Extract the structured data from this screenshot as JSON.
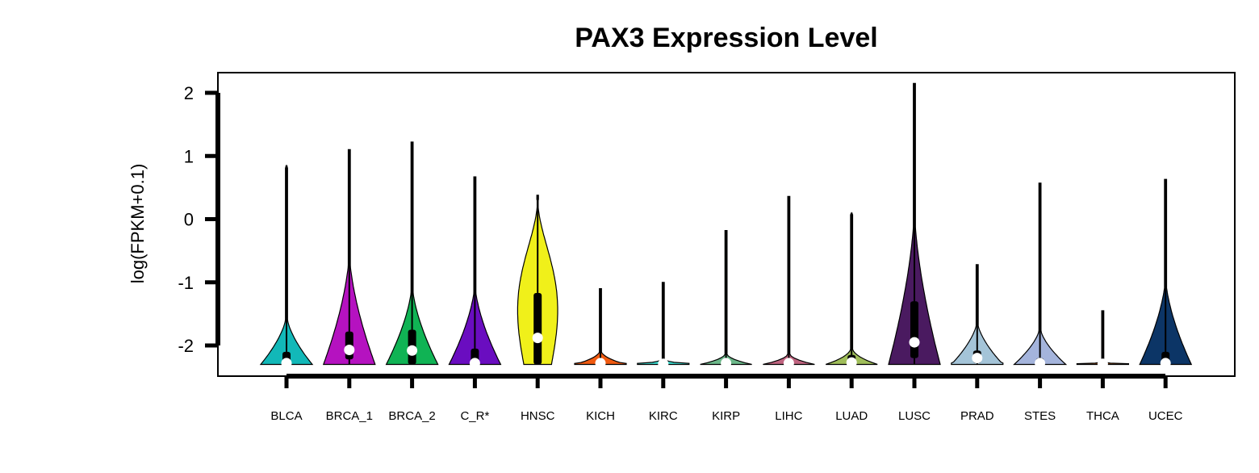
{
  "chart_data": {
    "type": "violin",
    "title": "PAX3 Expression Level",
    "ylabel": "log(FPKM+0.1)",
    "xlabel": "",
    "ylim": [
      -2.3,
      2.2
    ],
    "yticks": [
      2,
      1,
      0,
      -1,
      -2
    ],
    "grid": false,
    "legend": "none",
    "categories": [
      "BLCA",
      "BRCA_1",
      "BRCA_2",
      "C_R*",
      "HNSC",
      "KICH",
      "KIRC",
      "KIRP",
      "LIHC",
      "LUAD",
      "LUSC",
      "PRAD",
      "STES",
      "THCA",
      "UCEC"
    ],
    "series": [
      {
        "category": "BLCA",
        "color": "#12b8b8",
        "max": 0.85,
        "q1": -2.3,
        "median": -2.28,
        "q3": -2.1,
        "peak_y": -2.3,
        "halfwidth": 0.55,
        "profile": "tail_-1.5"
      },
      {
        "category": "BRCA_1",
        "color": "#b512c0",
        "max": 1.1,
        "q1": -2.22,
        "median": -2.07,
        "q3": -1.78,
        "peak_y": -2.2,
        "halfwidth": 0.55,
        "profile": "tail_-0.5"
      },
      {
        "category": "BRCA_2",
        "color": "#10b354",
        "max": 1.22,
        "q1": -2.3,
        "median": -2.08,
        "q3": -1.75,
        "peak_y": -2.2,
        "halfwidth": 0.55,
        "profile": "tail_-1.0"
      },
      {
        "category": "C_R*",
        "color": "#6a0dc0",
        "max": 0.67,
        "q1": -2.3,
        "median": -2.28,
        "q3": -2.05,
        "peak_y": -2.3,
        "halfwidth": 0.55,
        "profile": "tail_-1.0"
      },
      {
        "category": "HNSC",
        "color": "#f0f01a",
        "max": 0.38,
        "q1": -2.3,
        "median": -1.88,
        "q3": -1.17,
        "peak_y": -1.5,
        "halfwidth": 0.55,
        "profile": "tall_0.3"
      },
      {
        "category": "KICH",
        "color": "#f05a10",
        "max": -1.1,
        "q1": -2.3,
        "median": -2.28,
        "q3": -2.28,
        "peak_y": -2.3,
        "halfwidth": 0.55,
        "profile": "flat_-2.05"
      },
      {
        "category": "KIRC",
        "color": "#3cdcd0",
        "max": -1.0,
        "q1": -2.3,
        "median": -2.29,
        "q3": -2.29,
        "peak_y": -2.3,
        "halfwidth": 0.55,
        "profile": "flat_-2.2"
      },
      {
        "category": "KIRP",
        "color": "#6cb88a",
        "max": -0.18,
        "q1": -2.3,
        "median": -2.28,
        "q3": -2.28,
        "peak_y": -2.3,
        "halfwidth": 0.55,
        "profile": "flat_-2.1"
      },
      {
        "category": "LIHC",
        "color": "#c06480",
        "max": 0.36,
        "q1": -2.3,
        "median": -2.28,
        "q3": -2.28,
        "peak_y": -2.3,
        "halfwidth": 0.55,
        "profile": "flat_-2.1"
      },
      {
        "category": "LUAD",
        "color": "#a0be5a",
        "max": 0.1,
        "q1": -2.3,
        "median": -2.27,
        "q3": -2.15,
        "peak_y": -2.3,
        "halfwidth": 0.55,
        "profile": "flat_-2.0"
      },
      {
        "category": "LUSC",
        "color": "#4a1a60",
        "max": 2.15,
        "q1": -2.2,
        "median": -1.95,
        "q3": -1.3,
        "peak_y": -2.0,
        "halfwidth": 0.55,
        "profile": "tail_0.2"
      },
      {
        "category": "PRAD",
        "color": "#a4c4d8",
        "max": -0.72,
        "q1": -2.28,
        "median": -2.2,
        "q3": -2.08,
        "peak_y": -2.2,
        "halfwidth": 0.55,
        "profile": "tail_-1.6"
      },
      {
        "category": "STES",
        "color": "#a4b4dc",
        "max": 0.57,
        "q1": -2.3,
        "median": -2.28,
        "q3": -2.2,
        "peak_y": -2.3,
        "halfwidth": 0.55,
        "profile": "tail_-1.7"
      },
      {
        "category": "THCA",
        "color": "#8a4a1a",
        "max": -1.45,
        "q1": -2.3,
        "median": -2.29,
        "q3": -2.29,
        "peak_y": -2.3,
        "halfwidth": 0.55,
        "profile": "flat_-2.25"
      },
      {
        "category": "UCEC",
        "color": "#0c3566",
        "max": 0.63,
        "q1": -2.3,
        "median": -2.28,
        "q3": -2.1,
        "peak_y": -2.2,
        "halfwidth": 0.55,
        "profile": "tail_-0.9"
      }
    ]
  }
}
